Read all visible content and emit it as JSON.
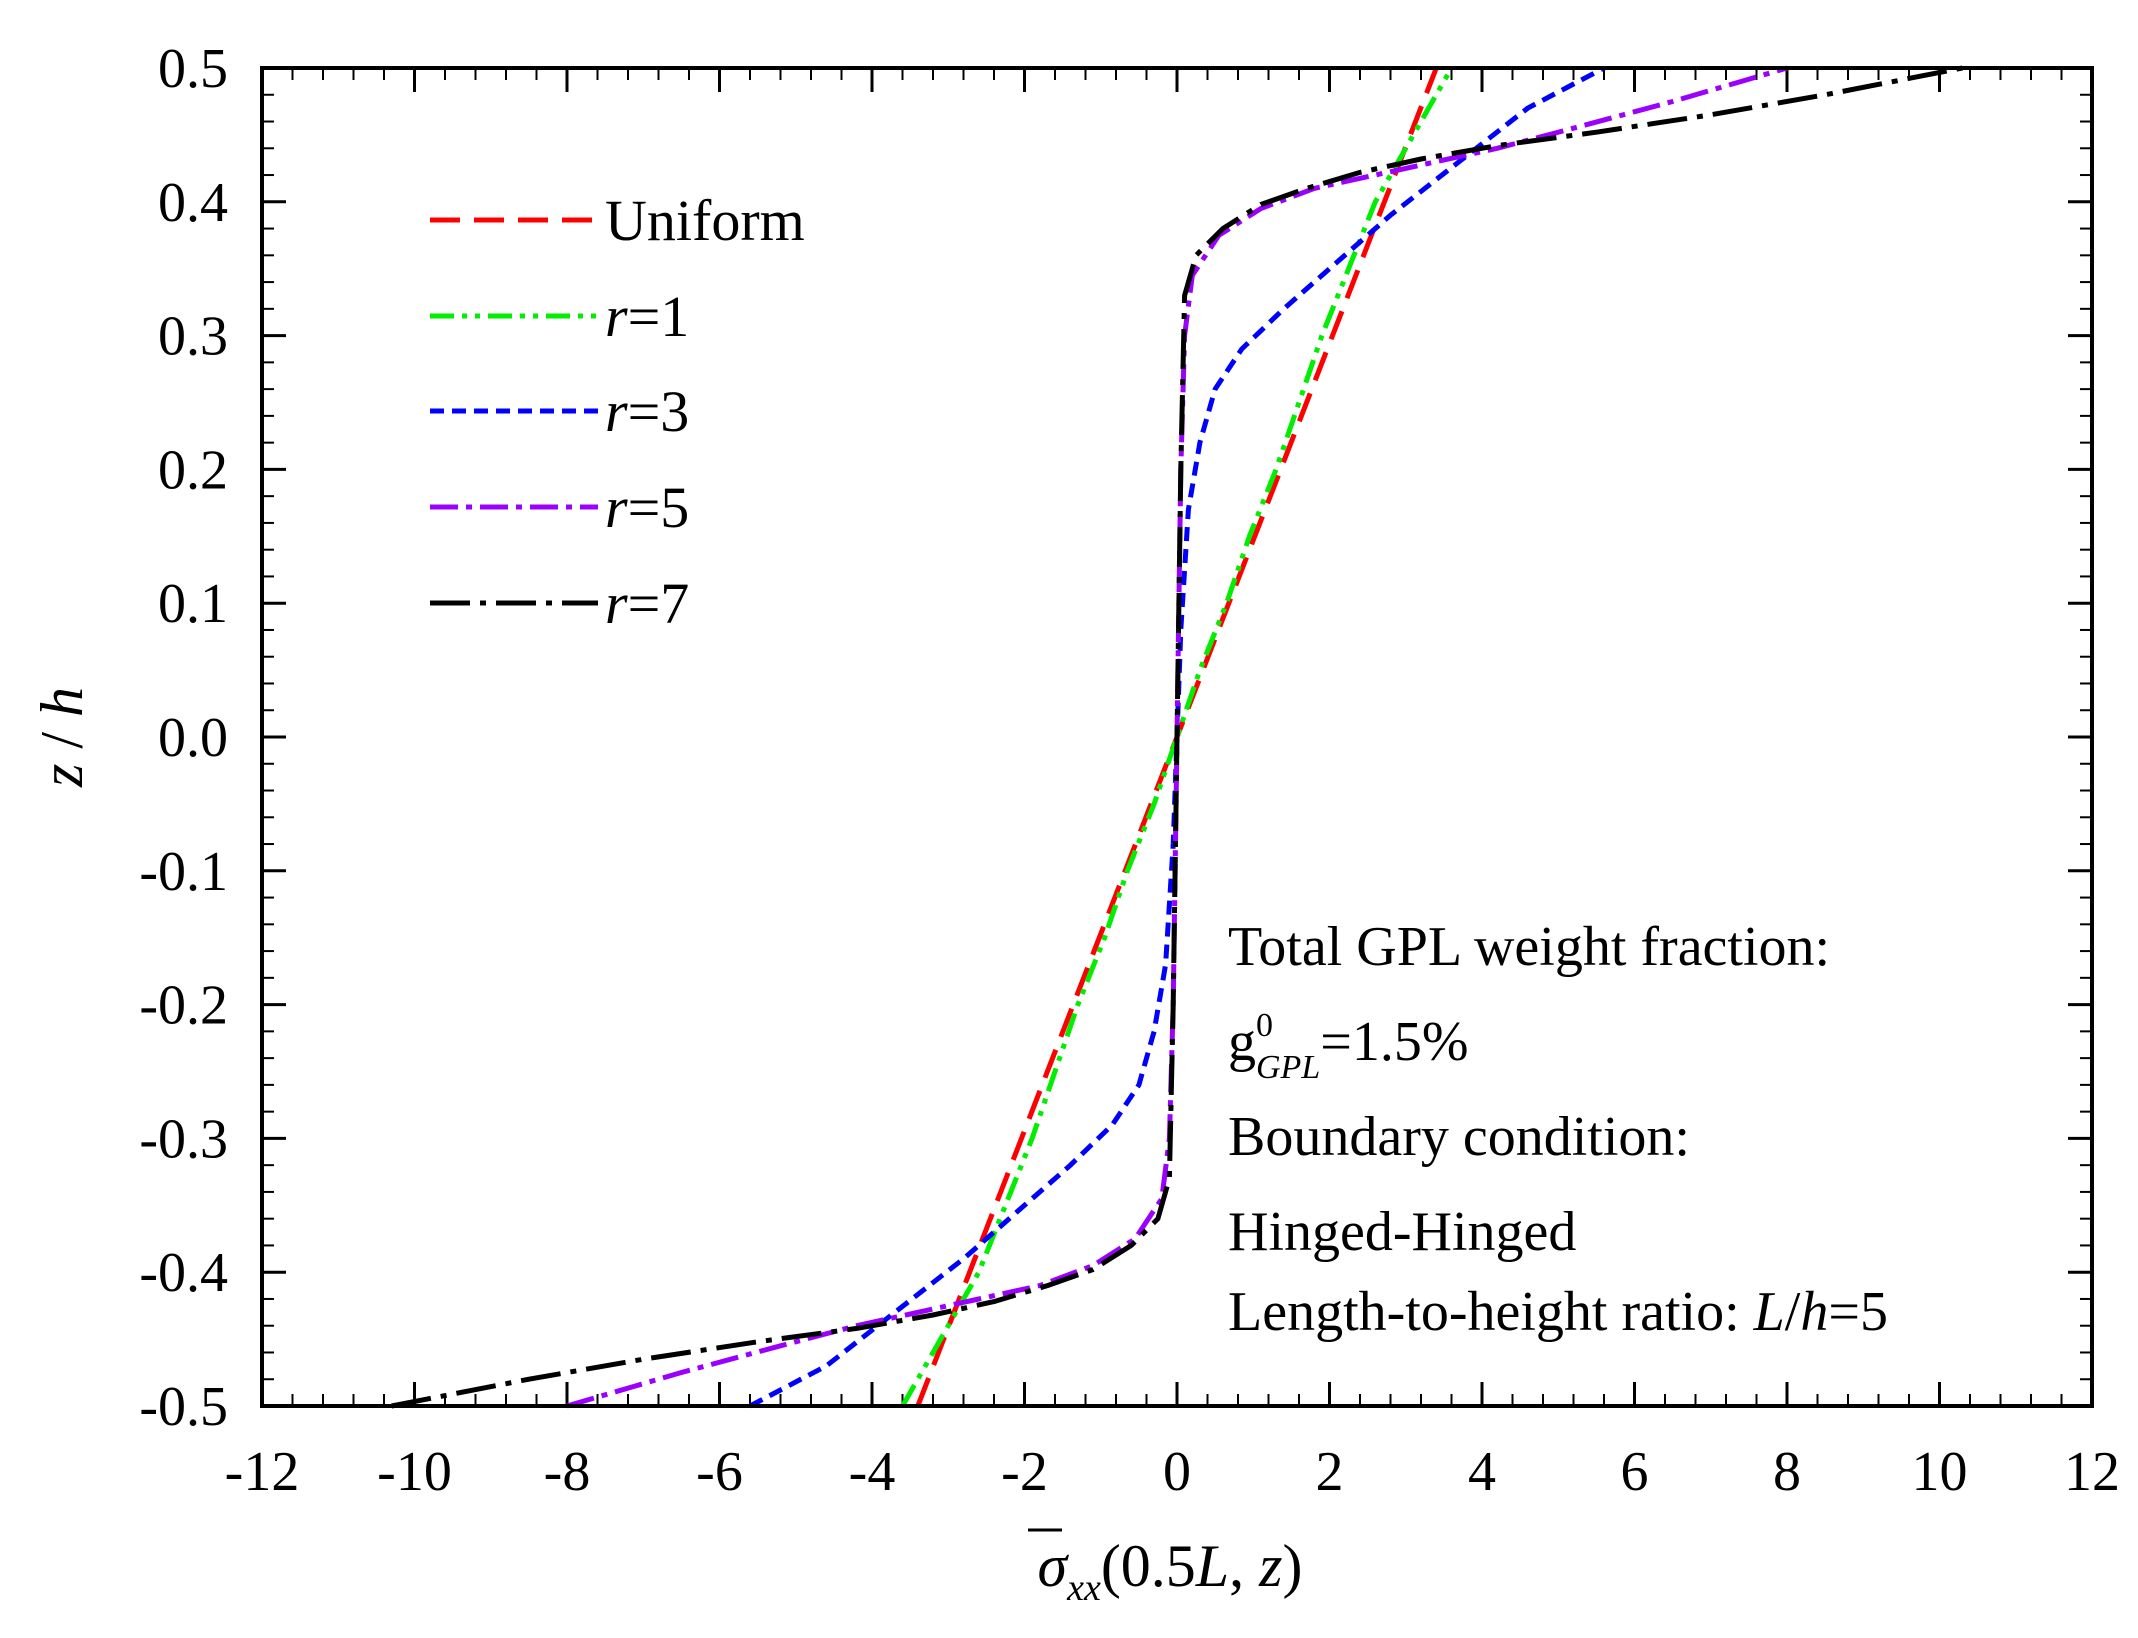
{
  "chart_data": {
    "type": "line",
    "xlabel": {
      "symbol": "σ",
      "sub": "xx",
      "arg_open": "(0.5",
      "arg_L": "L",
      "arg_mid": ", ",
      "arg_z": "z",
      "arg_close": ")"
    },
    "ylabel": {
      "z": "z",
      "slash": " / ",
      "h": "h"
    },
    "xlim": [
      -12,
      12
    ],
    "ylim": [
      -0.5,
      0.5
    ],
    "x_ticks": [
      "-12",
      "-10",
      "-8",
      "-6",
      "-4",
      "-2",
      "0",
      "2",
      "4",
      "6",
      "8",
      "10",
      "12"
    ],
    "y_ticks": [
      "0.5",
      "0.4",
      "0.3",
      "0.2",
      "0.1",
      "0.0",
      "-0.1",
      "-0.2",
      "-0.3",
      "-0.4",
      "-0.5"
    ],
    "legend_position": "top-left",
    "series": [
      {
        "name": "Uniform",
        "name_prefix": "",
        "name_value": "Uniform",
        "color": "#ff0000",
        "dash": "dash",
        "x": [
          -3.4,
          -2.72,
          -2.04,
          -1.36,
          -0.68,
          0,
          0.68,
          1.36,
          2.04,
          2.72,
          3.4
        ],
        "y": [
          -0.5,
          -0.4,
          -0.3,
          -0.2,
          -0.1,
          0.0,
          0.1,
          0.2,
          0.3,
          0.4,
          0.5
        ]
      },
      {
        "name": "r=1",
        "name_prefix": "r",
        "name_value": "=1",
        "color": "#00ee00",
        "dash": "dash-dot-dot",
        "x": [
          -3.6,
          -2.6,
          -1.9,
          -1.3,
          -0.95,
          -0.65,
          -0.3,
          0.0,
          0.3,
          0.65,
          0.95,
          1.3,
          1.9,
          2.6,
          3.6
        ],
        "y": [
          -0.5,
          -0.4,
          -0.3,
          -0.2,
          -0.15,
          -0.1,
          -0.05,
          0.0,
          0.05,
          0.1,
          0.15,
          0.2,
          0.3,
          0.4,
          0.5
        ]
      },
      {
        "name": "r=3",
        "name_prefix": "r",
        "name_value": "=3",
        "color": "#0000ff",
        "dash": "short-dash",
        "x": [
          -5.6,
          -4.6,
          -3.7,
          -2.8,
          -2.0,
          -1.4,
          -0.85,
          -0.5,
          -0.3,
          -0.15,
          -0.05,
          0.0,
          0.05,
          0.15,
          0.3,
          0.5,
          0.85,
          1.4,
          2.0,
          2.8,
          3.7,
          4.6,
          5.6
        ],
        "y": [
          -0.5,
          -0.47,
          -0.43,
          -0.39,
          -0.35,
          -0.32,
          -0.29,
          -0.26,
          -0.22,
          -0.17,
          -0.08,
          0.0,
          0.08,
          0.17,
          0.22,
          0.26,
          0.29,
          0.32,
          0.35,
          0.39,
          0.43,
          0.47,
          0.5
        ]
      },
      {
        "name": "r=5",
        "name_prefix": "r",
        "name_value": "=5",
        "color": "#9b00ff",
        "dash": "dash-dot",
        "x": [
          -8.0,
          -6.5,
          -5.2,
          -4.2,
          -3.4,
          -2.6,
          -1.8,
          -1.1,
          -0.55,
          -0.2,
          -0.1,
          -0.05,
          0.0,
          0.05,
          0.1,
          0.2,
          0.55,
          1.1,
          1.8,
          2.6,
          3.4,
          4.2,
          5.2,
          6.5,
          8.0
        ],
        "y": [
          -0.5,
          -0.475,
          -0.455,
          -0.44,
          -0.43,
          -0.42,
          -0.41,
          -0.395,
          -0.375,
          -0.345,
          -0.3,
          -0.2,
          0.0,
          0.2,
          0.3,
          0.345,
          0.375,
          0.395,
          0.41,
          0.42,
          0.43,
          0.44,
          0.455,
          0.475,
          0.5
        ]
      },
      {
        "name": "r=7",
        "name_prefix": "r",
        "name_value": "=7",
        "color": "#000000",
        "dash": "long-dash-dot",
        "x": [
          -10.3,
          -8.5,
          -7.0,
          -5.5,
          -4.2,
          -3.2,
          -2.4,
          -1.7,
          -1.1,
          -0.6,
          -0.25,
          -0.1,
          -0.05,
          0.0,
          0.05,
          0.1,
          0.25,
          0.6,
          1.1,
          1.7,
          2.4,
          3.2,
          4.2,
          5.5,
          7.0,
          8.5,
          10.3
        ],
        "y": [
          -0.5,
          -0.48,
          -0.465,
          -0.452,
          -0.442,
          -0.432,
          -0.422,
          -0.41,
          -0.398,
          -0.38,
          -0.36,
          -0.33,
          -0.2,
          0.0,
          0.2,
          0.33,
          0.36,
          0.38,
          0.398,
          0.41,
          0.422,
          0.432,
          0.442,
          0.452,
          0.465,
          0.48,
          0.5
        ]
      }
    ],
    "annotations": {
      "line1": "Total GPL weight fraction:",
      "line2": {
        "g": "g",
        "sup": "0",
        "sub": "GPL",
        "value": "=1.5%"
      },
      "line3": "Boundary condition:",
      "line4": "Hinged-Hinged",
      "line5": {
        "prefix": "Length-to-height ratio: ",
        "L": "L",
        "slash": "/",
        "h": "h",
        "value": "=5"
      }
    }
  }
}
